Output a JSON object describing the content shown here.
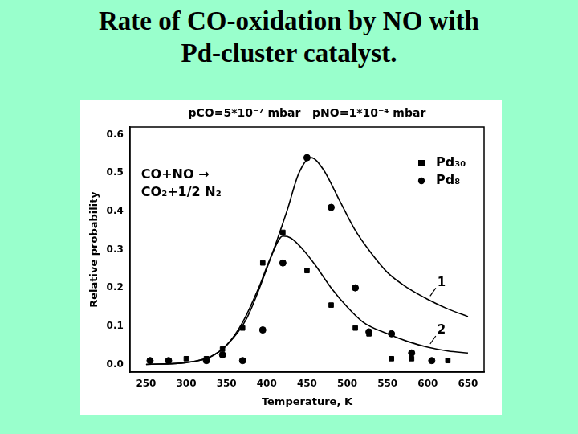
{
  "chart_data": {
    "type": "scatter",
    "title": [
      "Rate of CO-oxidation by NO  with",
      "Pd-cluster catalyst."
    ],
    "x_label": "Temperature, K",
    "y_label": "Relative probability",
    "annotations": [
      "pCO=5*10⁻⁷ mbar   pNO=1*10⁻⁴ mbar",
      [
        "CO+NO →",
        "CO₂+1/2 N₂"
      ]
    ],
    "series": [
      {
        "name": "Pd₃₀",
        "type": "scatter",
        "marker": "square",
        "color": "#000000",
        "x": [
          300,
          325,
          345,
          370,
          395,
          420,
          450,
          480,
          510,
          527,
          555,
          580,
          605,
          625
        ],
        "values": [
          0.015,
          0.015,
          0.04,
          0.095,
          0.265,
          0.345,
          0.245,
          0.155,
          0.095,
          0.08,
          0.015,
          0.015,
          0.01,
          0.01
        ]
      },
      {
        "name": "Pd₈",
        "type": "scatter",
        "marker": "circle",
        "color": "#000000",
        "x": [
          255,
          278,
          325,
          345,
          370,
          395,
          420,
          450,
          480,
          510,
          527,
          555,
          580,
          605
        ],
        "values": [
          0.01,
          0.01,
          0.01,
          0.025,
          0.01,
          0.09,
          0.265,
          0.54,
          0.41,
          0.2,
          0.085,
          0.08,
          0.03,
          0.01
        ]
      },
      {
        "name": "1",
        "type": "line",
        "marker": "none",
        "line_style": "solid",
        "color": "#000000",
        "x": [
          250,
          300,
          330,
          350,
          375,
          400,
          425,
          440,
          455,
          470,
          490,
          510,
          530,
          550,
          575,
          600,
          625,
          650
        ],
        "values": [
          0.0,
          0.005,
          0.02,
          0.05,
          0.12,
          0.25,
          0.4,
          0.5,
          0.54,
          0.51,
          0.43,
          0.35,
          0.29,
          0.24,
          0.2,
          0.17,
          0.145,
          0.125
        ]
      },
      {
        "name": "2",
        "type": "line",
        "marker": "none",
        "line_style": "solid",
        "color": "#000000",
        "x": [
          250,
          300,
          330,
          350,
          370,
          390,
          405,
          420,
          430,
          445,
          460,
          480,
          500,
          520,
          550,
          575,
          600,
          625,
          650
        ],
        "values": [
          0.0,
          0.005,
          0.02,
          0.05,
          0.11,
          0.2,
          0.28,
          0.335,
          0.33,
          0.3,
          0.26,
          0.2,
          0.15,
          0.11,
          0.08,
          0.06,
          0.045,
          0.035,
          0.03
        ]
      }
    ],
    "xlim": [
      230,
      670
    ],
    "xticks": [
      250,
      300,
      350,
      400,
      450,
      500,
      550,
      600,
      650
    ],
    "ylim": [
      -0.02,
      0.62
    ],
    "yticks": [
      {
        "value": 0,
        "label": "0.0"
      },
      0.1,
      0.2,
      0.3,
      0.4,
      0.5,
      0.6
    ],
    "grid": false,
    "legend": "upper right"
  }
}
